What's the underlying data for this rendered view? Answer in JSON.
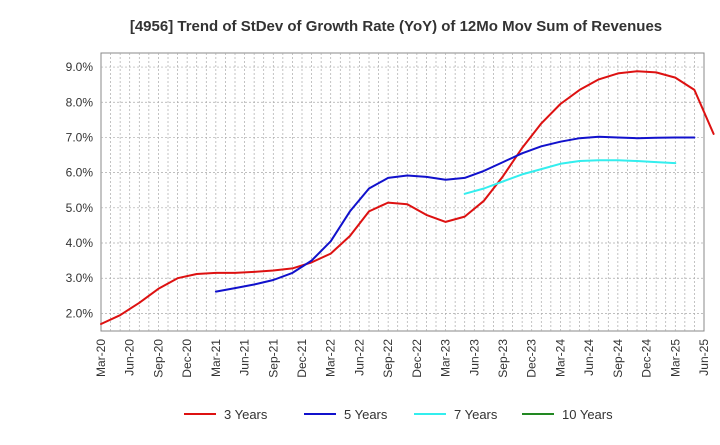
{
  "chart_data": {
    "type": "line",
    "title": "[4956]  Trend of StDev of Growth Rate (YoY) of 12Mo Mov Sum of Revenues",
    "xlabel": "",
    "ylabel": "",
    "ylim": [
      1.5,
      9.4
    ],
    "grid": true,
    "legend_position": "bottom",
    "y_ticks": [
      2.0,
      3.0,
      4.0,
      5.0,
      6.0,
      7.0,
      8.0,
      9.0
    ],
    "y_tick_labels": [
      "2.0%",
      "3.0%",
      "4.0%",
      "5.0%",
      "6.0%",
      "7.0%",
      "8.0%",
      "9.0%"
    ],
    "x_tick_labels": [
      "Mar-20",
      "Jun-20",
      "Sep-20",
      "Dec-20",
      "Mar-21",
      "Jun-21",
      "Sep-21",
      "Dec-21",
      "Mar-22",
      "Jun-22",
      "Sep-22",
      "Dec-22",
      "Mar-23",
      "Jun-23",
      "Sep-23",
      "Dec-23",
      "Mar-24",
      "Jun-24",
      "Sep-24",
      "Dec-24",
      "Mar-25",
      "Jun-25"
    ],
    "series": [
      {
        "name": "3 Years",
        "color": "#dd1111",
        "values": [
          1.7,
          1.95,
          2.3,
          2.7,
          3.0,
          3.12,
          3.15,
          3.15,
          3.18,
          3.22,
          3.28,
          3.45,
          3.7,
          4.2,
          4.9,
          5.15,
          5.1,
          4.8,
          4.6,
          4.75,
          5.2,
          5.9,
          6.7,
          7.4,
          7.95,
          8.35,
          8.65,
          8.82,
          8.88,
          8.85,
          8.7,
          8.35,
          7.1
        ]
      },
      {
        "name": "5 Years",
        "color": "#1111cc",
        "values": [
          null,
          null,
          null,
          null,
          null,
          null,
          2.62,
          2.72,
          2.82,
          2.95,
          3.15,
          3.5,
          4.05,
          4.9,
          5.55,
          5.85,
          5.92,
          5.88,
          5.8,
          5.85,
          6.05,
          6.3,
          6.55,
          6.75,
          6.88,
          6.98,
          7.02,
          7.0,
          6.98,
          6.99,
          7.0,
          7.0
        ]
      },
      {
        "name": "7 Years",
        "color": "#33eeee",
        "values": [
          null,
          null,
          null,
          null,
          null,
          null,
          null,
          null,
          null,
          null,
          null,
          null,
          null,
          null,
          null,
          null,
          null,
          null,
          null,
          5.4,
          5.55,
          5.75,
          5.95,
          6.1,
          6.25,
          6.33,
          6.35,
          6.35,
          6.33,
          6.3,
          6.27
        ]
      },
      {
        "name": "10 Years",
        "color": "#228822",
        "values": []
      }
    ]
  }
}
